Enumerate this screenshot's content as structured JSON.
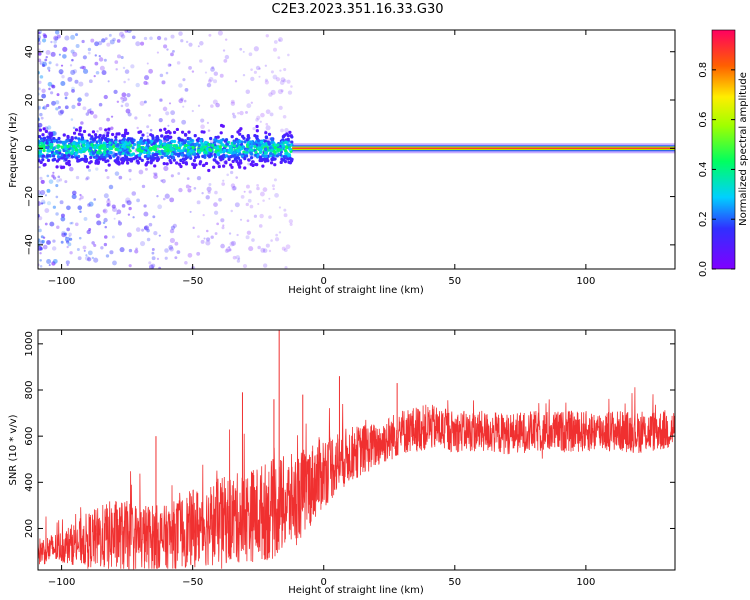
{
  "title": "C2E3.2023.351.16.33.G30",
  "chart_data": [
    {
      "type": "heatmap",
      "xlabel": "Height of straight line (km)",
      "ylabel": "Frequency (Hz)",
      "xlim": [
        -109,
        134
      ],
      "ylim": [
        -50,
        49
      ],
      "xticks": [
        -100,
        -50,
        0,
        50,
        100
      ],
      "yticks": [
        -40,
        -20,
        0,
        20,
        40
      ],
      "colorbar": {
        "label": "Normalized spectral amplitude",
        "range": [
          0,
          0.96
        ],
        "ticks": [
          0.0,
          0.2,
          0.4,
          0.6,
          0.8
        ],
        "colormap": "rainbow (purple-blue-cyan-green-yellow-orange-red-magenta)"
      },
      "features": [
        {
          "description": "steady band centered at 0 Hz",
          "x": [
            -12,
            134
          ],
          "y_center": 0,
          "amplitude": 0.9
        },
        {
          "description": "broad noisy band",
          "x": [
            -109,
            -12
          ],
          "y_center": 0,
          "half_width": 6,
          "amplitude": 0.35
        },
        {
          "description": "sparse speckle",
          "x": [
            -109,
            -12
          ],
          "y": [
            -50,
            49
          ],
          "amplitude": 0.1
        }
      ]
    },
    {
      "type": "line",
      "xlabel": "Height of straight line (km)",
      "ylabel": "SNR (10 * v/v)",
      "xlim": [
        -109,
        134
      ],
      "ylim": [
        20,
        1060
      ],
      "xticks": [
        -100,
        -50,
        0,
        50,
        100
      ],
      "yticks": [
        200,
        400,
        600,
        800,
        1000
      ],
      "series": [
        {
          "color": "#f03030",
          "x": [
            -109,
            -100,
            -90,
            -80,
            -70,
            -60,
            -50,
            -40,
            -30,
            -20,
            -10,
            0,
            10,
            20,
            30,
            40,
            50,
            60,
            70,
            80,
            90,
            100,
            110,
            120,
            134
          ],
          "y": [
            100,
            120,
            150,
            170,
            160,
            160,
            200,
            230,
            250,
            280,
            330,
            450,
            520,
            560,
            620,
            640,
            620,
            620,
            610,
            620,
            620,
            620,
            625,
            615,
            630
          ],
          "spread": [
            60,
            70,
            120,
            160,
            150,
            140,
            170,
            190,
            200,
            220,
            200,
            160,
            120,
            100,
            100,
            100,
            90,
            90,
            90,
            90,
            90,
            90,
            90,
            90,
            90
          ],
          "spikes": [
            {
              "x": -17,
              "y": 1060
            },
            {
              "x": -19,
              "y": 760
            },
            {
              "x": -31,
              "y": 790
            },
            {
              "x": -64,
              "y": 600
            },
            {
              "x": -8,
              "y": 780
            },
            {
              "x": 6,
              "y": 860
            },
            {
              "x": 28,
              "y": 830
            }
          ]
        }
      ]
    }
  ]
}
